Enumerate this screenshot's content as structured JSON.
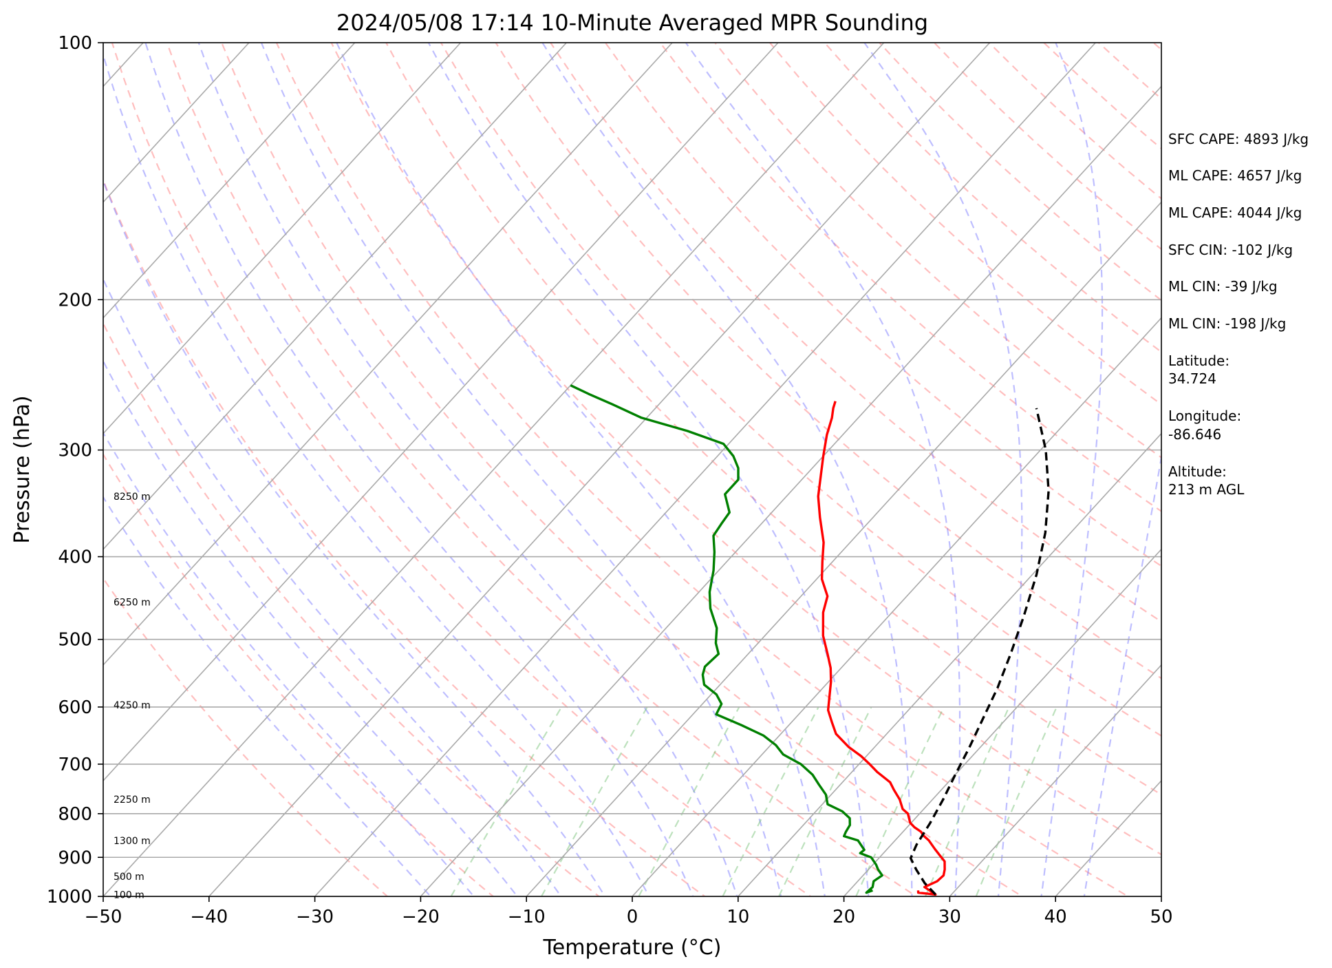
{
  "chart_data": {
    "type": "line",
    "chart_kind": "skew-T log-P sounding",
    "title": "2024/05/08 17:14 10-Minute Averaged MPR Sounding",
    "xlabel": "Temperature (°C)",
    "ylabel": "Pressure (hPa)",
    "xlim": [
      -50,
      50
    ],
    "ylim": [
      1000,
      100
    ],
    "y_scale": "log",
    "grid": true,
    "x_ticks": [
      -50,
      -40,
      -30,
      -20,
      -10,
      0,
      10,
      20,
      30,
      40,
      50
    ],
    "x_tick_labels": [
      "−50",
      "−40",
      "−30",
      "−20",
      "−10",
      "0",
      "10",
      "20",
      "30",
      "40",
      "50"
    ],
    "y_ticks": [
      1000,
      900,
      800,
      700,
      600,
      500,
      400,
      300,
      200,
      100
    ],
    "y_tick_labels": [
      "1000",
      "900",
      "800",
      "700",
      "600",
      "500",
      "400",
      "300",
      "200",
      "100"
    ],
    "height_labels": [
      {
        "text": "100 m",
        "p": 995
      },
      {
        "text": "500 m",
        "p": 948
      },
      {
        "text": "1300 m",
        "p": 860
      },
      {
        "text": "2250 m",
        "p": 770
      },
      {
        "text": "4250 m",
        "p": 597
      },
      {
        "text": "6250 m",
        "p": 452
      },
      {
        "text": "8250 m",
        "p": 340
      }
    ],
    "series": [
      {
        "kind": "temperature",
        "color": "#ff0000",
        "points": [
          [
            984,
            26.5
          ],
          [
            990,
            26.7
          ],
          [
            995,
            28.5
          ],
          [
            975,
            26.8
          ],
          [
            960,
            27.5
          ],
          [
            945,
            27.6
          ],
          [
            930,
            27.2
          ],
          [
            910,
            26.5
          ],
          [
            895,
            25.5
          ],
          [
            880,
            24.5
          ],
          [
            860,
            23.2
          ],
          [
            848,
            22.2
          ],
          [
            840,
            21.7
          ],
          [
            830,
            20.7
          ],
          [
            820,
            19.9
          ],
          [
            800,
            18.9
          ],
          [
            790,
            18.0
          ],
          [
            770,
            16.9
          ],
          [
            750,
            15.5
          ],
          [
            735,
            14.5
          ],
          [
            715,
            12.4
          ],
          [
            700,
            11.0
          ],
          [
            685,
            9.5
          ],
          [
            668,
            7.5
          ],
          [
            645,
            5.2
          ],
          [
            625,
            3.8
          ],
          [
            605,
            2.4
          ],
          [
            580,
            1.2
          ],
          [
            560,
            0.2
          ],
          [
            540,
            -1.0
          ],
          [
            520,
            -2.5
          ],
          [
            495,
            -4.5
          ],
          [
            465,
            -6.5
          ],
          [
            445,
            -7.5
          ],
          [
            425,
            -9.5
          ],
          [
            405,
            -11.0
          ],
          [
            385,
            -12.5
          ],
          [
            360,
            -15.0
          ],
          [
            340,
            -17.0
          ],
          [
            322,
            -18.5
          ],
          [
            305,
            -20.0
          ],
          [
            288,
            -21.5
          ],
          [
            275,
            -22.5
          ],
          [
            268,
            -23.2
          ],
          [
            263,
            -23.6
          ]
        ]
      },
      {
        "kind": "dewpoint",
        "color": "#008000",
        "points": [
          [
            984,
            22.2
          ],
          [
            990,
            21.8
          ],
          [
            975,
            21.9
          ],
          [
            960,
            21.5
          ],
          [
            945,
            21.8
          ],
          [
            930,
            20.9
          ],
          [
            918,
            20.3
          ],
          [
            900,
            19.2
          ],
          [
            890,
            17.8
          ],
          [
            882,
            17.9
          ],
          [
            860,
            16.5
          ],
          [
            850,
            14.8
          ],
          [
            840,
            14.6
          ],
          [
            825,
            14.4
          ],
          [
            810,
            13.8
          ],
          [
            795,
            12.5
          ],
          [
            780,
            10.5
          ],
          [
            760,
            9.5
          ],
          [
            740,
            8.0
          ],
          [
            720,
            6.5
          ],
          [
            700,
            4.5
          ],
          [
            682,
            2.0
          ],
          [
            665,
            0.5
          ],
          [
            648,
            -1.5
          ],
          [
            630,
            -4.5
          ],
          [
            612,
            -7.8
          ],
          [
            595,
            -8.2
          ],
          [
            580,
            -9.5
          ],
          [
            565,
            -11.5
          ],
          [
            550,
            -12.5
          ],
          [
            538,
            -13.0
          ],
          [
            520,
            -12.8
          ],
          [
            505,
            -14.0
          ],
          [
            485,
            -15.2
          ],
          [
            460,
            -17.5
          ],
          [
            440,
            -19.0
          ],
          [
            415,
            -20.5
          ],
          [
            395,
            -22.0
          ],
          [
            378,
            -23.5
          ],
          [
            365,
            -23.8
          ],
          [
            355,
            -24.0
          ],
          [
            338,
            -26.0
          ],
          [
            325,
            -26.0
          ],
          [
            315,
            -27.0
          ],
          [
            305,
            -28.5
          ],
          [
            295,
            -30.5
          ],
          [
            285,
            -35.0
          ],
          [
            275,
            -40.5
          ],
          [
            265,
            -44.5
          ],
          [
            258,
            -47.5
          ],
          [
            252,
            -50.0
          ]
        ]
      },
      {
        "kind": "parcel",
        "color": "#000000",
        "points": [
          [
            995,
            28.5
          ],
          [
            965,
            26.5
          ],
          [
            930,
            24.5
          ],
          [
            902,
            23.0
          ],
          [
            870,
            22.4
          ],
          [
            820,
            21.8
          ],
          [
            770,
            21.0
          ],
          [
            720,
            20.0
          ],
          [
            670,
            19.0
          ],
          [
            620,
            17.8
          ],
          [
            570,
            16.5
          ],
          [
            520,
            14.8
          ],
          [
            470,
            12.8
          ],
          [
            420,
            10.4
          ],
          [
            375,
            7.6
          ],
          [
            335,
            4.3
          ],
          [
            300,
            0.5
          ],
          [
            268,
            -4.0
          ]
        ]
      }
    ]
  },
  "info_panel": {
    "sfc_cape": "SFC CAPE: 4893 J/kg",
    "ml_cape_1": "ML CAPE: 4657 J/kg",
    "ml_cape_2": "ML CAPE: 4044 J/kg",
    "sfc_cin": "SFC CIN: -102 J/kg",
    "ml_cin_1": "ML CIN: -39 J/kg",
    "ml_cin_2": "ML CIN: -198 J/kg",
    "latitude_label": "Latitude:",
    "latitude_value": "34.724",
    "longitude_label": "Longitude:",
    "longitude_value": "-86.646",
    "altitude_label": "Altitude:",
    "altitude_value": "213 m AGL"
  },
  "colors": {
    "isotherm": "#a9a9a9",
    "dry_adiabat": "#ff6f6f",
    "moist_adiabat": "#6f6fff",
    "mixing_ratio": "#5ab45a"
  }
}
